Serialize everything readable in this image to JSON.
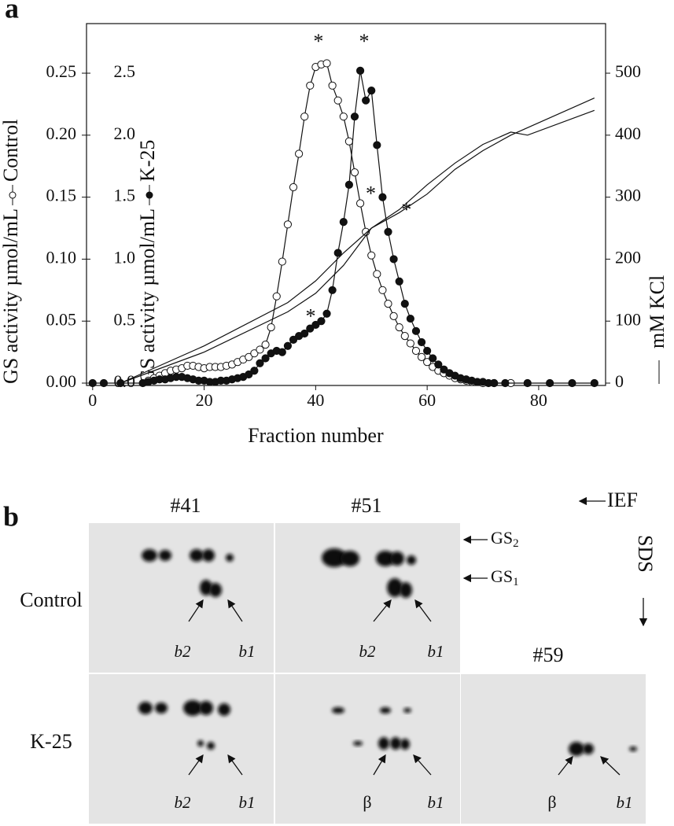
{
  "chart_data": {
    "type": "scatter",
    "panel_label": "a",
    "xlabel": "Fraction number",
    "ylabel": "GS activity µmol/mL",
    "y3label": "GS activity µmol/mL",
    "y2label": "mM KCl",
    "xlim": [
      -1.1,
      92
    ],
    "xticks": [
      0,
      20,
      40,
      60,
      80
    ],
    "ylim": [
      0,
      0.29
    ],
    "yticks": [
      {
        "value": 0,
        "label": "0.00"
      },
      {
        "value": 0.05,
        "label": "0.05"
      },
      {
        "value": 0.1,
        "label": "0.10"
      },
      {
        "value": 0.15,
        "label": "0.15"
      },
      {
        "value": 0.2,
        "label": "0.20"
      },
      0.25
    ],
    "y3lim": [
      0,
      2.9
    ],
    "y3ticks": [
      {
        "value": 0,
        "label": "0.0"
      },
      0.5,
      {
        "value": 1,
        "label": "1.0"
      },
      1.5,
      {
        "value": 2,
        "label": "2.0"
      },
      2.5
    ],
    "y2lim": [
      0,
      580
    ],
    "y2ticks": [
      0,
      100,
      200,
      300,
      400,
      500
    ],
    "series": [
      {
        "name": "Control",
        "marker": "open",
        "axis": "y",
        "color": "#111",
        "x": [
          10,
          11,
          12,
          13,
          14,
          15,
          16,
          17,
          18,
          19,
          20,
          21,
          22,
          23,
          24,
          25,
          26,
          27,
          28,
          29,
          30,
          31,
          32,
          33,
          34,
          35,
          36,
          37,
          38,
          39,
          40,
          41,
          42,
          43,
          44,
          45,
          46,
          47,
          48,
          49,
          50,
          51,
          52,
          53,
          54,
          55,
          56,
          57,
          58,
          59,
          60,
          61,
          62,
          63,
          64,
          65,
          66,
          67,
          68,
          70,
          72,
          75
        ],
        "values": [
          0.002,
          0.004,
          0.006,
          0.008,
          0.01,
          0.011,
          0.012,
          0.014,
          0.014,
          0.013,
          0.012,
          0.013,
          0.013,
          0.013,
          0.014,
          0.015,
          0.017,
          0.019,
          0.021,
          0.024,
          0.027,
          0.031,
          0.045,
          0.07,
          0.098,
          0.128,
          0.158,
          0.185,
          0.215,
          0.24,
          0.255,
          0.257,
          0.258,
          0.24,
          0.228,
          0.215,
          0.195,
          0.17,
          0.145,
          0.122,
          0.103,
          0.088,
          0.075,
          0.064,
          0.054,
          0.045,
          0.038,
          0.032,
          0.026,
          0.021,
          0.017,
          0.013,
          0.01,
          0.008,
          0.006,
          0.004,
          0.003,
          0.002,
          0.001,
          0,
          0,
          0
        ]
      },
      {
        "name": "K-25",
        "marker": "filled",
        "axis": "y3",
        "color": "#111",
        "x": [
          0,
          2,
          5,
          9,
          10,
          11,
          12,
          13,
          14,
          15,
          16,
          17,
          18,
          19,
          20,
          21,
          22,
          23,
          24,
          25,
          26,
          27,
          28,
          29,
          30,
          31,
          32,
          33,
          34,
          35,
          36,
          37,
          38,
          39,
          40,
          41,
          42,
          43,
          44,
          45,
          46,
          47,
          48,
          49,
          50,
          51,
          52,
          53,
          54,
          55,
          56,
          57,
          58,
          59,
          60,
          61,
          62,
          63,
          64,
          65,
          66,
          67,
          68,
          69,
          70,
          71,
          72,
          74,
          78,
          82,
          86,
          90
        ],
        "values": [
          0,
          0,
          0,
          0,
          0.01,
          0.02,
          0.03,
          0.03,
          0.04,
          0.05,
          0.05,
          0.04,
          0.03,
          0.02,
          0.02,
          0.01,
          0.01,
          0.02,
          0.02,
          0.03,
          0.04,
          0.05,
          0.07,
          0.1,
          0.16,
          0.2,
          0.24,
          0.26,
          0.25,
          0.3,
          0.35,
          0.38,
          0.4,
          0.44,
          0.47,
          0.5,
          0.56,
          0.75,
          1.05,
          1.3,
          1.6,
          2.15,
          2.52,
          2.28,
          2.36,
          1.92,
          1.5,
          1.22,
          1.0,
          0.82,
          0.64,
          0.52,
          0.42,
          0.33,
          0.26,
          0.2,
          0.15,
          0.11,
          0.08,
          0.06,
          0.04,
          0.03,
          0.02,
          0.01,
          0.01,
          0,
          0,
          0,
          0,
          0,
          0,
          0
        ]
      },
      {
        "marker": "line",
        "axis": "y2",
        "color": "#111",
        "x": [
          5,
          20,
          35,
          40,
          45,
          50,
          55,
          60,
          65,
          70,
          75,
          80,
          90
        ],
        "values": [
          0,
          60,
          130,
          165,
          210,
          250,
          275,
          305,
          345,
          375,
          400,
          420,
          460
        ]
      },
      {
        "marker": "line",
        "axis": "y2",
        "color": "#111",
        "x": [
          5,
          20,
          35,
          40,
          45,
          50,
          55,
          60,
          65,
          70,
          75,
          78,
          90
        ],
        "values": [
          0,
          50,
          115,
          145,
          190,
          250,
          280,
          320,
          355,
          385,
          405,
          400,
          440
        ]
      }
    ],
    "annotations": [
      {
        "text": "*",
        "x": 40.5,
        "y": 0.278
      },
      {
        "text": "*",
        "x": 48.7,
        "y": 0.278
      },
      {
        "text": "*",
        "x": 49.9,
        "y": 0.155
      },
      {
        "text": "*",
        "x": 56.3,
        "y": 0.142
      },
      {
        "text": "*",
        "x": 39.1,
        "y": 0.056
      }
    ]
  },
  "panel_b": {
    "panel_label": "b",
    "columns": [
      "#41",
      "#51",
      "#59"
    ],
    "rows": [
      "Control",
      "K-25"
    ],
    "ief": "IEF",
    "sds": "SDS",
    "gs2": {
      "text": "GS",
      "sub": "2"
    },
    "gs1": {
      "text": "GS",
      "sub": "1"
    },
    "gel_labels": [
      [
        "b2",
        "b1"
      ],
      [
        "b2",
        "b1"
      ],
      [
        "b2",
        "b1"
      ],
      [
        "β",
        "b1"
      ],
      [
        "β",
        "b1"
      ]
    ]
  }
}
